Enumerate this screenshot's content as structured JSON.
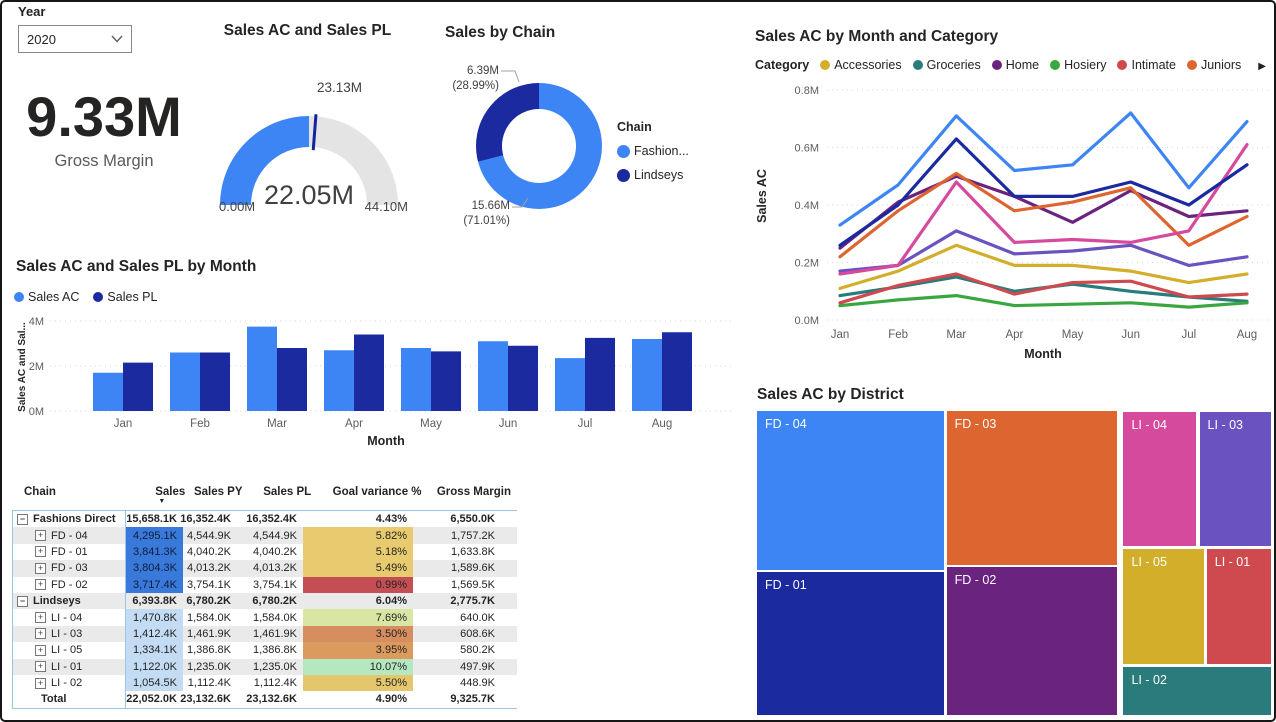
{
  "slicer": {
    "label": "Year",
    "value": "2020"
  },
  "card": {
    "value": "9.33M",
    "label": "Gross Margin"
  },
  "table_ui": {
    "sort_indicator": "▼",
    "collapse_glyph": "−",
    "expand_glyph": "+"
  },
  "donut_ui": {
    "legend_title": "Chain"
  },
  "chart_data": [
    {
      "type": "gauge",
      "title": "Sales AC and Sales PL",
      "min": 0,
      "max": 44.1,
      "value": 22.05,
      "target": 23.13,
      "min_label": "0.00M",
      "max_label": "44.10M",
      "value_label": "22.05M",
      "target_label": "23.13M",
      "fill_color": "#3D85F5",
      "track_color": "#E4E4E4",
      "target_color": "#12239E"
    },
    {
      "type": "pie",
      "title": "Sales by Chain",
      "legend_title": "Chain",
      "slices": [
        {
          "name": "Fashion...",
          "value_label": "15.66M",
          "pct_label": "(71.01%)",
          "pct": 71.01,
          "color": "#3D85F5"
        },
        {
          "name": "Lindseys",
          "value_label": "6.39M",
          "pct_label": "(28.99%)",
          "pct": 28.99,
          "color": "#1B2A9E"
        }
      ]
    },
    {
      "type": "line",
      "title": "Sales AC by Month and Category",
      "legend_title": "Category",
      "xlabel": "Month",
      "ylabel": "Sales AC",
      "x": [
        "Jan",
        "Feb",
        "Mar",
        "Apr",
        "May",
        "Jun",
        "Jul",
        "Aug"
      ],
      "ylim": [
        0,
        0.8
      ],
      "yticks": [
        {
          "v": 0.0,
          "label": "0.0M"
        },
        {
          "v": 0.2,
          "label": "0.2M"
        },
        {
          "v": 0.4,
          "label": "0.4M"
        },
        {
          "v": 0.6,
          "label": "0.6M"
        },
        {
          "v": 0.8,
          "label": "0.8M"
        }
      ],
      "legend": [
        {
          "name": "Accessories",
          "color": "#D3AE2B"
        },
        {
          "name": "Groceries",
          "color": "#2A7C7C"
        },
        {
          "name": "Home",
          "color": "#6B2380"
        },
        {
          "name": "Hosiery",
          "color": "#3AA640"
        },
        {
          "name": "Intimate",
          "color": "#CE4A4F"
        },
        {
          "name": "Juniors",
          "color": "#DD652F"
        }
      ],
      "legend_overflow": true,
      "series": [
        {
          "name": "Groceries",
          "color": "#2A7C7C",
          "values": [
            0.085,
            0.115,
            0.15,
            0.1,
            0.125,
            0.1,
            0.08,
            0.065
          ]
        },
        {
          "name": "Hosiery",
          "color": "#3AA640",
          "values": [
            0.05,
            0.07,
            0.085,
            0.05,
            0.055,
            0.06,
            0.045,
            0.06
          ]
        },
        {
          "name": "Accessories",
          "color": "#D3AE2B",
          "values": [
            0.11,
            0.17,
            0.26,
            0.19,
            0.19,
            0.17,
            0.13,
            0.16
          ]
        },
        {
          "name": "Intimate",
          "color": "#CE4A4F",
          "values": [
            0.06,
            0.12,
            0.16,
            0.09,
            0.13,
            0.135,
            0.08,
            0.09
          ]
        },
        {
          "name": "",
          "color": "#6A52C0",
          "values": [
            0.17,
            0.19,
            0.31,
            0.23,
            0.24,
            0.26,
            0.19,
            0.22
          ]
        },
        {
          "name": "Home",
          "color": "#6B2380",
          "values": [
            0.25,
            0.41,
            0.5,
            0.43,
            0.34,
            0.45,
            0.36,
            0.38
          ]
        },
        {
          "name": "Juniors",
          "color": "#DD652F",
          "values": [
            0.22,
            0.38,
            0.51,
            0.38,
            0.41,
            0.46,
            0.26,
            0.36
          ]
        },
        {
          "name": "",
          "color": "#D64A9E",
          "values": [
            0.16,
            0.19,
            0.48,
            0.27,
            0.28,
            0.27,
            0.31,
            0.61
          ]
        },
        {
          "name": "",
          "color": "#1B2A9E",
          "values": [
            0.26,
            0.4,
            0.63,
            0.43,
            0.43,
            0.48,
            0.4,
            0.54
          ]
        },
        {
          "name": "",
          "color": "#3D85F5",
          "values": [
            0.33,
            0.47,
            0.71,
            0.52,
            0.54,
            0.72,
            0.46,
            0.69
          ]
        }
      ]
    },
    {
      "type": "bar",
      "title": "Sales AC and Sales PL by Month",
      "xlabel": "Month",
      "ylabel": "Sales AC and Sal...",
      "categories": [
        "Jan",
        "Feb",
        "Mar",
        "Apr",
        "May",
        "Jun",
        "Jul",
        "Aug"
      ],
      "ylim": [
        0,
        4
      ],
      "yticks": [
        {
          "v": 0,
          "label": "0M"
        },
        {
          "v": 2,
          "label": "2M"
        },
        {
          "v": 4,
          "label": "4M"
        }
      ],
      "series": [
        {
          "name": "Sales AC",
          "color": "#3D85F5",
          "values": [
            1.7,
            2.6,
            3.75,
            2.7,
            2.8,
            3.1,
            2.35,
            3.2
          ]
        },
        {
          "name": "Sales PL",
          "color": "#1B2A9E",
          "values": [
            2.15,
            2.6,
            2.8,
            3.4,
            2.65,
            2.9,
            3.25,
            3.5
          ]
        }
      ]
    },
    {
      "type": "table",
      "columns": [
        "Chain",
        "Sales",
        "Sales PY",
        "Sales PL",
        "Goal variance %",
        "Gross Margin"
      ],
      "sorted_column": "Sales",
      "rows": [
        {
          "t": "g",
          "chain": "Fashions Direct",
          "sales": "15,658.1K",
          "py": "16,352.4K",
          "pl": "16,352.4K",
          "gv": "4.43%",
          "gm": "6,550.0K",
          "banded": false
        },
        {
          "t": "c",
          "chain": "FD - 04",
          "sales": "4,295.1K",
          "py": "4,544.9K",
          "pl": "4,544.9K",
          "gv": "5.82%",
          "gm": "1,757.2K",
          "banded": true,
          "sbg": "#3879D9",
          "sfg": "#151B3B",
          "gbg": "#E7CB6E"
        },
        {
          "t": "c",
          "chain": "FD - 01",
          "sales": "3,841.3K",
          "py": "4,040.2K",
          "pl": "4,040.2K",
          "gv": "5.18%",
          "gm": "1,633.8K",
          "banded": false,
          "sbg": "#3879D9",
          "sfg": "#151B3B",
          "gbg": "#E7CB6E"
        },
        {
          "t": "c",
          "chain": "FD - 03",
          "sales": "3,804.3K",
          "py": "4,013.2K",
          "pl": "4,013.2K",
          "gv": "5.49%",
          "gm": "1,589.6K",
          "banded": true,
          "sbg": "#3879D9",
          "sfg": "#151B3B",
          "gbg": "#E7CB6E"
        },
        {
          "t": "c",
          "chain": "FD - 02",
          "sales": "3,717.4K",
          "py": "3,754.1K",
          "pl": "3,754.1K",
          "gv": "0.99%",
          "gm": "1,569.5K",
          "banded": false,
          "sbg": "#3879D9",
          "sfg": "#151B3B",
          "gbg": "#C44E54"
        },
        {
          "t": "g",
          "chain": "Lindseys",
          "sales": "6,393.8K",
          "py": "6,780.2K",
          "pl": "6,780.2K",
          "gv": "6.04%",
          "gm": "2,775.7K",
          "banded": true
        },
        {
          "t": "c",
          "chain": "LI - 04",
          "sales": "1,470.8K",
          "py": "1,584.0K",
          "pl": "1,584.0K",
          "gv": "7.69%",
          "gm": "640.0K",
          "banded": false,
          "sbg": "#C3DCF4",
          "sfg": "#252423",
          "gbg": "#D9E5A3"
        },
        {
          "t": "c",
          "chain": "LI - 03",
          "sales": "1,412.4K",
          "py": "1,461.9K",
          "pl": "1,461.9K",
          "gv": "3.50%",
          "gm": "608.6K",
          "banded": true,
          "sbg": "#C3DCF4",
          "sfg": "#252423",
          "gbg": "#D68E61"
        },
        {
          "t": "c",
          "chain": "LI - 05",
          "sales": "1,334.1K",
          "py": "1,386.8K",
          "pl": "1,386.8K",
          "gv": "3.95%",
          "gm": "580.2K",
          "banded": false,
          "sbg": "#C3DCF4",
          "sfg": "#252423",
          "gbg": "#DC9B5E"
        },
        {
          "t": "c",
          "chain": "LI - 01",
          "sales": "1,122.0K",
          "py": "1,235.0K",
          "pl": "1,235.0K",
          "gv": "10.07%",
          "gm": "497.9K",
          "banded": true,
          "sbg": "#C3DCF4",
          "sfg": "#252423",
          "gbg": "#B5E8C0"
        },
        {
          "t": "c",
          "chain": "LI - 02",
          "sales": "1,054.5K",
          "py": "1,112.4K",
          "pl": "1,112.4K",
          "gv": "5.50%",
          "gm": "448.9K",
          "banded": false,
          "sbg": "#C3DCF4",
          "sfg": "#252423",
          "gbg": "#E4C76D"
        },
        {
          "t": "t",
          "chain": "Total",
          "sales": "22,052.0K",
          "py": "23,132.6K",
          "pl": "23,132.6K",
          "gv": "4.90%",
          "gm": "9,325.7K",
          "banded": false
        }
      ]
    },
    {
      "type": "treemap",
      "title": "Sales AC by District",
      "tiles": [
        {
          "label": "FD - 04",
          "color": "#3D85F5",
          "x": 0,
          "y": 0,
          "w": 36.3,
          "h": 52.2
        },
        {
          "label": "FD - 01",
          "color": "#1B2A9E",
          "x": 0,
          "y": 52.9,
          "w": 36.3,
          "h": 47.1
        },
        {
          "label": "FD - 03",
          "color": "#DD652F",
          "x": 36.9,
          "y": 0,
          "w": 33.1,
          "h": 50.5
        },
        {
          "label": "FD - 02",
          "color": "#6B2380",
          "x": 36.9,
          "y": 51.2,
          "w": 33.1,
          "h": 48.8
        },
        {
          "label": "LI - 04",
          "color": "#D64A9E",
          "x": 71.3,
          "y": 0.3,
          "w": 14.2,
          "h": 44.2
        },
        {
          "label": "LI - 03",
          "color": "#6A52C0",
          "x": 86.1,
          "y": 0.3,
          "w": 13.9,
          "h": 44.2
        },
        {
          "label": "LI - 05",
          "color": "#D3AE2B",
          "x": 71.3,
          "y": 45.5,
          "w": 15.6,
          "h": 37.8
        },
        {
          "label": "LI - 01",
          "color": "#CE4A4F",
          "x": 87.5,
          "y": 45.5,
          "w": 12.5,
          "h": 37.8
        },
        {
          "label": "LI - 02",
          "color": "#2A7C7C",
          "x": 71.3,
          "y": 84.2,
          "w": 28.7,
          "h": 15.8
        }
      ]
    }
  ]
}
